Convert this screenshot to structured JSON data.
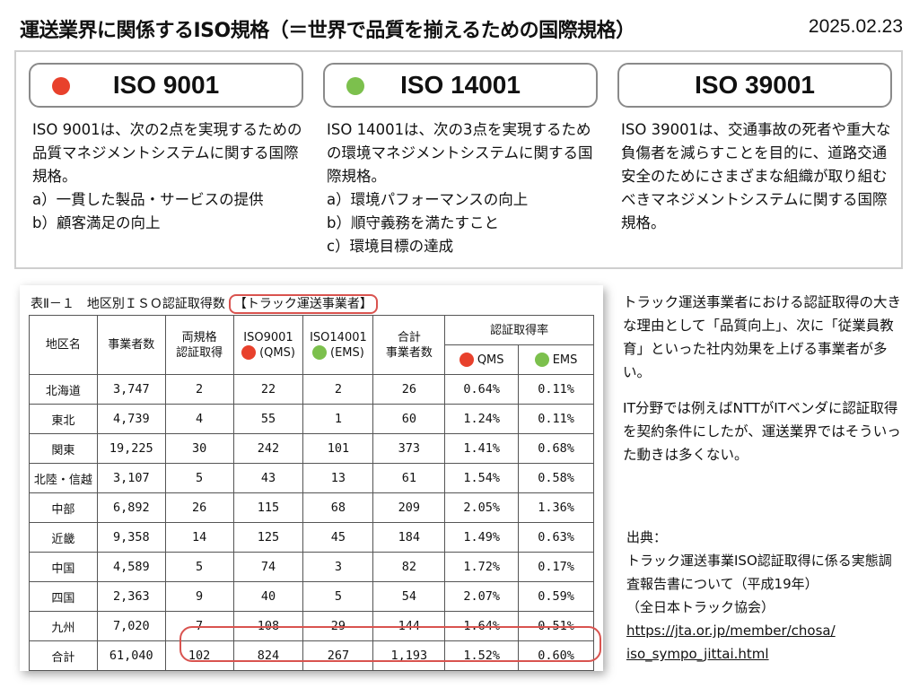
{
  "header": {
    "title": "運送業界に関係するISO規格（＝世界で品質を揃えるための国際規格）",
    "date": "2025.02.23"
  },
  "colors": {
    "red": "#e8412c",
    "green": "#7cc04d",
    "highlight": "#d9534f"
  },
  "iso": [
    {
      "name": "ISO 9001",
      "dot": "red",
      "lines": [
        "ISO 9001は、次の2点を実現するための品質マネジメントシステムに関する国際規格。",
        "a）一貫した製品・サービスの提供",
        "b）顧客満足の向上"
      ]
    },
    {
      "name": "ISO 14001",
      "dot": "green",
      "lines": [
        "ISO 14001は、次の3点を実現するための環境マネジメントシステムに関する国際規格。",
        "a）環境パフォーマンスの向上",
        "b）順守義務を満たすこと",
        "c）環境目標の達成"
      ]
    },
    {
      "name": "ISO 39001",
      "dot": "",
      "lines": [
        "ISO 39001は、交通事故の死者や重大な負傷者を減らすことを目的に、道路交通安全のためにさまざまな組織が取り組むべきマネジメントシステムに関する国際規格。"
      ]
    }
  ],
  "table": {
    "caption": "表Ⅱ－１　地区別ＩＳＯ認証取得数",
    "caption_highlight": "【トラック運送事業者】",
    "headers": {
      "region": "地区名",
      "businesses": "事業者数",
      "both_1": "両規格",
      "both_2": "認証取得",
      "iso9001_1": "ISO9001",
      "iso9001_2": "(QMS)",
      "iso14001_1": "ISO14001",
      "iso14001_2": "(EMS)",
      "total_1": "合計",
      "total_2": "事業者数",
      "rate": "認証取得率",
      "qms": "QMS",
      "ems": "EMS"
    },
    "rows": [
      [
        "北海道",
        "3,747",
        "2",
        "22",
        "2",
        "26",
        "0.64%",
        "0.11%"
      ],
      [
        "東北",
        "4,739",
        "4",
        "55",
        "1",
        "60",
        "1.24%",
        "0.11%"
      ],
      [
        "関東",
        "19,225",
        "30",
        "242",
        "101",
        "373",
        "1.41%",
        "0.68%"
      ],
      [
        "北陸・信越",
        "3,107",
        "5",
        "43",
        "13",
        "61",
        "1.54%",
        "0.58%"
      ],
      [
        "中部",
        "6,892",
        "26",
        "115",
        "68",
        "209",
        "2.05%",
        "1.36%"
      ],
      [
        "近畿",
        "9,358",
        "14",
        "125",
        "45",
        "184",
        "1.49%",
        "0.63%"
      ],
      [
        "中国",
        "4,589",
        "5",
        "74",
        "3",
        "82",
        "1.72%",
        "0.17%"
      ],
      [
        "四国",
        "2,363",
        "9",
        "40",
        "5",
        "54",
        "2.07%",
        "0.59%"
      ],
      [
        "九州",
        "7,020",
        "7",
        "108",
        "29",
        "144",
        "1.64%",
        "0.51%"
      ],
      [
        "合計",
        "61,040",
        "102",
        "824",
        "267",
        "1,193",
        "1.52%",
        "0.60%"
      ]
    ]
  },
  "notes": {
    "p1": "トラック運送事業者における認証取得の大きな理由として「品質向上」、次に「従業員教育」といった社内効果を上げる事業者が多い。",
    "p2": "IT分野では例えばNTTがITベンダに認証取得を契約条件にしたが、運送業界ではそういった動きは多くない。"
  },
  "source": {
    "label": "出典：",
    "title": "トラック運送事業ISO認証取得に係る実態調査報告書について（平成19年）",
    "org": "（全日本トラック協会）",
    "url_1": "https://jta.or.jp/member/chosa/",
    "url_2": "iso_sympo_jittai.html"
  }
}
